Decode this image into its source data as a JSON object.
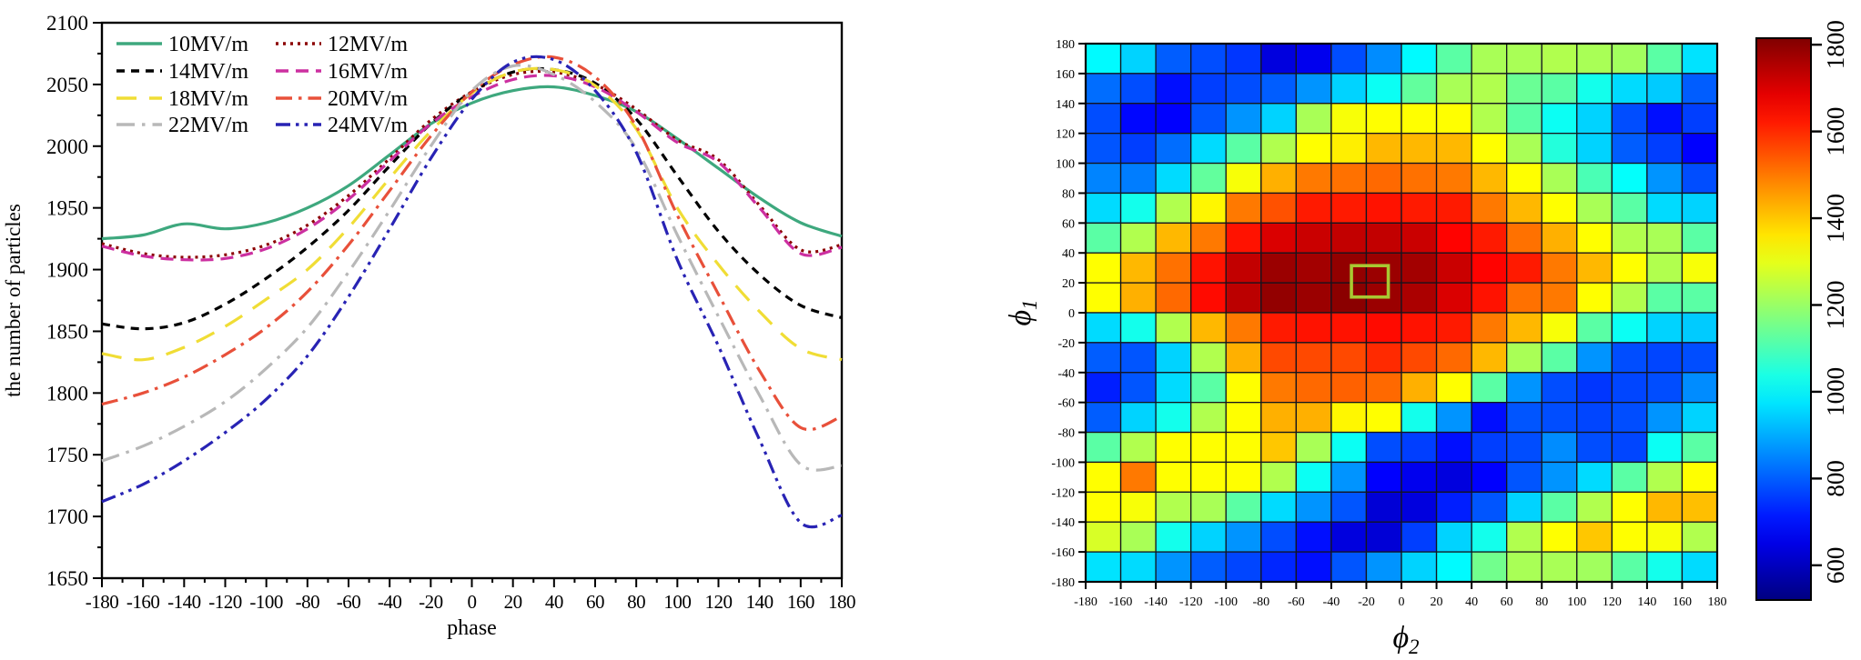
{
  "figure": {
    "background": "#ffffff"
  },
  "chart_data": [
    {
      "type": "line",
      "title": "",
      "xlabel": "phase",
      "ylabel": "the number of particles",
      "xlim": [
        -180,
        180
      ],
      "ylim": [
        1650,
        2100
      ],
      "x_tick_step": 20,
      "x_minor_step": 10,
      "y_tick_step": 50,
      "y_minor_step": 25,
      "grid": false,
      "legend_position": "top-left",
      "legend_columns": 2,
      "legend_order": [
        [
          "10MV/m",
          "12MV/m"
        ],
        [
          "14MV/m",
          "16MV/m"
        ],
        [
          "18MV/m",
          "20MV/m"
        ],
        [
          "22MV/m",
          "24MV/m"
        ]
      ],
      "x": [
        -180,
        -160,
        -140,
        -120,
        -100,
        -80,
        -60,
        -40,
        -20,
        0,
        20,
        40,
        60,
        80,
        100,
        120,
        140,
        160,
        180
      ],
      "series": [
        {
          "name": "10MV/m",
          "color": "#3ea87e",
          "style": "solid",
          "values": [
            1925,
            1928,
            1937,
            1933,
            1938,
            1950,
            1968,
            1993,
            2018,
            2035,
            2045,
            2048,
            2041,
            2028,
            2006,
            1982,
            1958,
            1938,
            1927
          ]
        },
        {
          "name": "12MV/m",
          "color": "#8b0000",
          "style": "dotted",
          "values": [
            1921,
            1913,
            1910,
            1912,
            1920,
            1936,
            1960,
            1990,
            2021,
            2044,
            2058,
            2060,
            2050,
            2030,
            2005,
            1989,
            1952,
            1916,
            1920
          ]
        },
        {
          "name": "14MV/m",
          "color": "#000000",
          "style": "dash",
          "values": [
            1856,
            1852,
            1857,
            1872,
            1893,
            1918,
            1948,
            1984,
            2018,
            2044,
            2060,
            2062,
            2051,
            2022,
            1976,
            1931,
            1896,
            1871,
            1861
          ]
        },
        {
          "name": "16MV/m",
          "color": "#cc2fa0",
          "style": "dash-long",
          "values": [
            1919,
            1911,
            1908,
            1909,
            1917,
            1933,
            1957,
            1988,
            2018,
            2040,
            2054,
            2057,
            2048,
            2028,
            2003,
            1987,
            1950,
            1913,
            1918
          ]
        },
        {
          "name": "18MV/m",
          "color": "#f0dd35",
          "style": "dash-longer",
          "values": [
            1832,
            1827,
            1837,
            1854,
            1876,
            1900,
            1934,
            1974,
            2012,
            2043,
            2060,
            2062,
            2049,
            2014,
            1950,
            1904,
            1866,
            1836,
            1827
          ]
        },
        {
          "name": "20MV/m",
          "color": "#e8503a",
          "style": "dash-dot",
          "values": [
            1791,
            1800,
            1813,
            1831,
            1853,
            1882,
            1920,
            1964,
            2008,
            2044,
            2066,
            2072,
            2056,
            2016,
            1944,
            1880,
            1818,
            1772,
            1781
          ]
        },
        {
          "name": "22MV/m",
          "color": "#b8b8b8",
          "style": "dash-dot-2",
          "values": [
            1745,
            1757,
            1773,
            1793,
            1820,
            1853,
            1898,
            1948,
            2000,
            2045,
            2065,
            2058,
            2036,
            1998,
            1928,
            1862,
            1798,
            1742,
            1741
          ]
        },
        {
          "name": "24MV/m",
          "color": "#2823b4",
          "style": "dash-dot-dot",
          "values": [
            1712,
            1726,
            1745,
            1768,
            1795,
            1830,
            1878,
            1933,
            1990,
            2038,
            2068,
            2070,
            2045,
            1995,
            1908,
            1838,
            1762,
            1695,
            1701
          ]
        }
      ]
    },
    {
      "type": "heatmap",
      "xlabel": "ϕ2",
      "ylabel": "ϕ1",
      "xlim": [
        -180,
        180
      ],
      "ylim": [
        -180,
        180
      ],
      "tick_step": 20,
      "cell_size_deg": 20,
      "colormap": "jet",
      "colorbar": {
        "vmin": 520,
        "vmax": 1815,
        "ticks": [
          600,
          800,
          1000,
          1200,
          1400,
          1600,
          1800
        ]
      },
      "row_centers_top_to_bottom": [
        170,
        150,
        130,
        110,
        90,
        70,
        50,
        30,
        10,
        -10,
        -30,
        -50,
        -70,
        -90,
        -110,
        -130,
        -150,
        -170
      ],
      "col_centers_left_to_right": [
        -170,
        -150,
        -130,
        -110,
        -90,
        -70,
        -50,
        -30,
        -10,
        10,
        30,
        50,
        70,
        90,
        110,
        130,
        150,
        170
      ],
      "values": [
        [
          1000,
          950,
          800,
          780,
          750,
          640,
          660,
          780,
          860,
          1000,
          1120,
          1220,
          1220,
          1230,
          1220,
          1210,
          1120,
          970
        ],
        [
          820,
          780,
          700,
          760,
          780,
          800,
          870,
          950,
          1020,
          1130,
          1220,
          1230,
          1140,
          1120,
          1030,
          960,
          940,
          800
        ],
        [
          780,
          690,
          680,
          790,
          870,
          950,
          1220,
          1320,
          1330,
          1330,
          1330,
          1230,
          1120,
          1020,
          950,
          780,
          700,
          760
        ],
        [
          790,
          760,
          820,
          960,
          1120,
          1230,
          1330,
          1350,
          1420,
          1420,
          1420,
          1330,
          1220,
          1050,
          950,
          800,
          760,
          680
        ],
        [
          850,
          840,
          960,
          1130,
          1320,
          1430,
          1500,
          1510,
          1520,
          1510,
          1500,
          1420,
          1330,
          1220,
          1100,
          1010,
          870,
          780
        ],
        [
          960,
          1030,
          1230,
          1340,
          1500,
          1550,
          1620,
          1620,
          1630,
          1620,
          1620,
          1500,
          1420,
          1330,
          1220,
          1120,
          960,
          950
        ],
        [
          1120,
          1230,
          1420,
          1500,
          1630,
          1700,
          1720,
          1730,
          1730,
          1720,
          1650,
          1620,
          1510,
          1430,
          1330,
          1230,
          1220,
          1120
        ],
        [
          1330,
          1420,
          1510,
          1630,
          1730,
          1780,
          1770,
          1790,
          1780,
          1770,
          1720,
          1650,
          1620,
          1500,
          1420,
          1330,
          1230,
          1320
        ],
        [
          1330,
          1430,
          1520,
          1640,
          1740,
          1790,
          1780,
          1800,
          1780,
          1760,
          1700,
          1630,
          1510,
          1500,
          1330,
          1230,
          1120,
          1120
        ],
        [
          960,
          1030,
          1230,
          1420,
          1500,
          1620,
          1630,
          1630,
          1640,
          1630,
          1620,
          1500,
          1420,
          1320,
          1120,
          1020,
          950,
          940
        ],
        [
          800,
          790,
          950,
          1230,
          1430,
          1560,
          1560,
          1560,
          1600,
          1560,
          1520,
          1420,
          1220,
          1120,
          870,
          780,
          770,
          780
        ],
        [
          720,
          790,
          960,
          1120,
          1330,
          1500,
          1520,
          1530,
          1520,
          1430,
          1330,
          1120,
          870,
          780,
          750,
          770,
          780,
          860
        ],
        [
          800,
          950,
          1030,
          1230,
          1330,
          1430,
          1430,
          1340,
          1330,
          1030,
          870,
          700,
          790,
          780,
          770,
          780,
          870,
          950
        ],
        [
          1120,
          1230,
          1330,
          1330,
          1330,
          1400,
          1220,
          1020,
          780,
          760,
          700,
          760,
          780,
          860,
          780,
          770,
          1020,
          1120
        ],
        [
          1330,
          1500,
          1330,
          1330,
          1330,
          1230,
          1020,
          870,
          680,
          660,
          640,
          680,
          790,
          870,
          960,
          1120,
          1230,
          1330
        ],
        [
          1330,
          1320,
          1230,
          1220,
          1120,
          960,
          870,
          790,
          630,
          640,
          720,
          790,
          950,
          1120,
          1230,
          1330,
          1420,
          1410
        ],
        [
          1280,
          1220,
          1030,
          950,
          870,
          780,
          700,
          640,
          630,
          760,
          950,
          1030,
          1230,
          1330,
          1400,
          1330,
          1320,
          1230
        ],
        [
          970,
          960,
          870,
          800,
          770,
          730,
          700,
          790,
          870,
          950,
          1000,
          1150,
          1220,
          1220,
          1210,
          1120,
          1030,
          960
        ]
      ],
      "highlight_cell": {
        "phi2": -18,
        "phi1": 21,
        "width_deg": 21,
        "height_deg": 21,
        "border_color": "#a8c832"
      }
    }
  ]
}
